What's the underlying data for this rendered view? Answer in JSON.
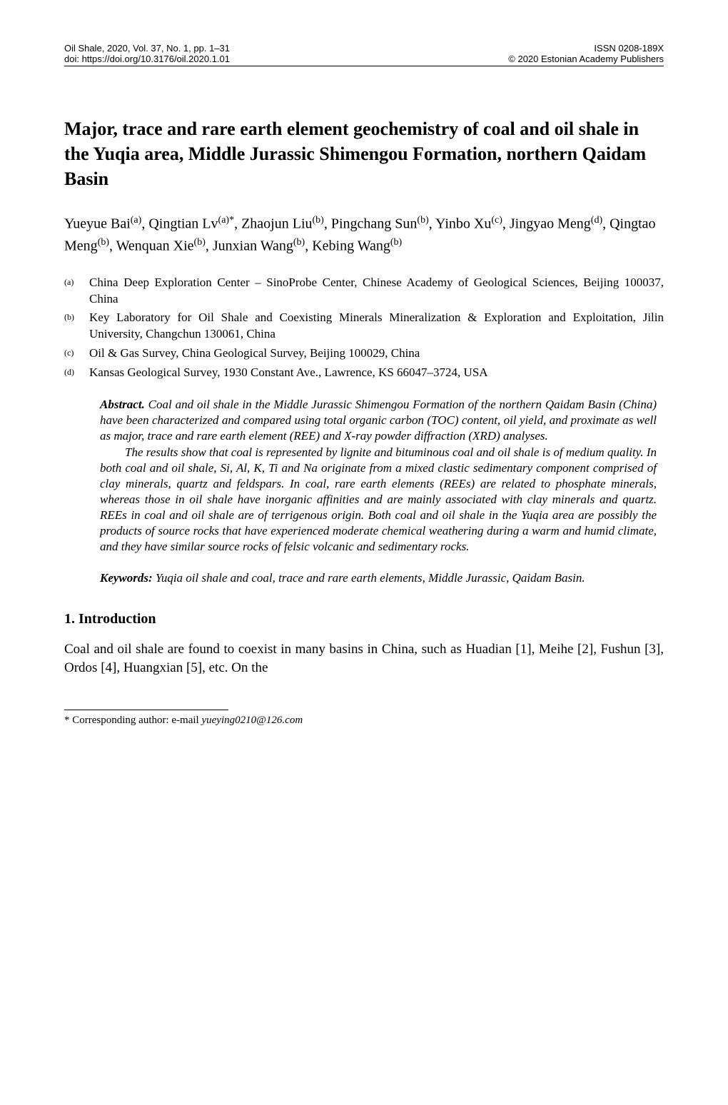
{
  "header": {
    "left_line1": "Oil Shale, 2020, Vol. 37, No. 1, pp. 1–31",
    "left_line2": "doi: https://doi.org/10.3176/oil.2020.1.01",
    "right_line1": "ISSN 0208-189X",
    "right_line2": "© 2020 Estonian Academy Publishers"
  },
  "title": "Major, trace and rare earth element geochemistry of coal and oil shale in the Yuqia area, Middle Jurassic Shimengou Formation, northern Qaidam Basin",
  "authors": {
    "list": [
      {
        "name": "Yueyue Bai",
        "sup": "(a)"
      },
      {
        "name": "Qingtian Lv",
        "sup": "(a)*"
      },
      {
        "name": "Zhaojun Liu",
        "sup": "(b)"
      },
      {
        "name": "Pingchang Sun",
        "sup": "(b)"
      },
      {
        "name": "Yinbo Xu",
        "sup": "(c)"
      },
      {
        "name": "Jingyao Meng",
        "sup": "(d)"
      },
      {
        "name": "Qingtao Meng",
        "sup": "(b)"
      },
      {
        "name": "Wenquan Xie",
        "sup": "(b)"
      },
      {
        "name": "Junxian Wang",
        "sup": "(b)"
      },
      {
        "name": "Kebing Wang",
        "sup": "(b)"
      }
    ]
  },
  "affiliations": [
    {
      "sup": "(a)",
      "text": "China Deep Exploration Center – SinoProbe Center, Chinese Academy of Geological Sciences, Beijing 100037, China"
    },
    {
      "sup": "(b)",
      "text": "Key Laboratory for Oil Shale and Coexisting Minerals Mineralization & Exploration and Exploitation, Jilin University, Changchun 130061, China"
    },
    {
      "sup": "(c)",
      "text": "Oil & Gas Survey, China Geological Survey, Beijing 100029, China"
    },
    {
      "sup": "(d)",
      "text": "Kansas Geological Survey, 1930 Constant Ave., Lawrence, KS 66047–3724, USA"
    }
  ],
  "abstract": {
    "label": "Abstract.",
    "para1": " Coal and oil shale in the Middle Jurassic Shimengou Formation of the northern Qaidam Basin (China) have been characterized and compared using total organic carbon (TOC) content, oil yield, and proximate as well as major, trace and rare earth element (REE) and X-ray powder diffraction (XRD) analyses.",
    "para2": "The results show that coal is represented by lignite and bituminous coal and oil shale is of medium quality. In both coal and oil shale, Si, Al, K, Ti and Na originate from a mixed clastic sedimentary component comprised of clay minerals, quartz and feldspars. In coal, rare earth elements (REEs) are related to phosphate minerals, whereas those in oil shale have inorganic affinities and are mainly associated with clay minerals and quartz. REEs in coal and oil shale are of terrigenous origin. Both coal and oil shale in the Yuqia area are possibly the products of source rocks that have experienced moderate chemical weathering during a warm and humid climate, and they have similar source rocks of felsic volcanic and sedimentary rocks."
  },
  "keywords": {
    "label": "Keywords:",
    "text": " Yuqia oil shale and coal, trace and rare earth elements, Middle Jurassic, Qaidam Basin."
  },
  "section1": {
    "heading": "1. Introduction",
    "body": "Coal and oil shale are found to coexist in many basins in China, such as Huadian [1], Meihe [2], Fushun [3], Ordos [4], Huangxian [5], etc. On the"
  },
  "footnote": {
    "prefix": "* Corresponding author: e-mail ",
    "email": "yueying0210@126.com"
  }
}
